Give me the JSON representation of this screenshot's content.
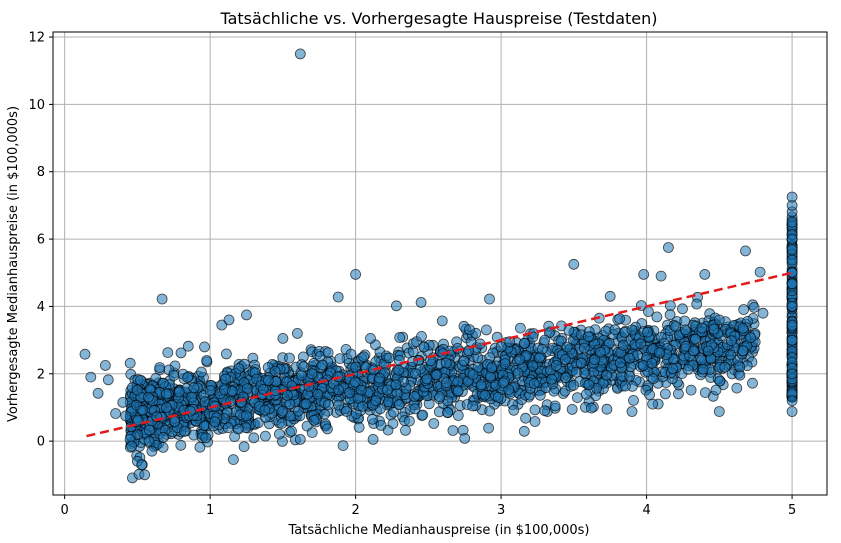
{
  "chart_data": {
    "type": "scatter",
    "title": "Tatsächliche vs. Vorhergesagte Hauspreise (Testdaten)",
    "xlabel": "Tatsächliche Medianhauspreise (in $100,000s)",
    "ylabel": "Vorhergesagte Medianhauspreise (in $100,000s)",
    "xlim": [
      -0.08,
      5.24
    ],
    "ylim": [
      -1.6,
      12.15
    ],
    "x_ticks": [
      0,
      1,
      2,
      3,
      4,
      5
    ],
    "y_ticks": [
      0,
      2,
      4,
      6,
      8,
      10,
      12
    ],
    "x_tick_labels": [
      "0",
      "1",
      "2",
      "3",
      "4",
      "5"
    ],
    "y_tick_labels": [
      "0",
      "2",
      "4",
      "6",
      "8",
      "10",
      "12"
    ],
    "grid": true,
    "colors": {
      "points": "#1f77b4",
      "point_edge": "#000000",
      "reference_line": "#e31a1c",
      "grid": "#b0b0b0"
    },
    "reference_line": {
      "x": [
        0.15,
        5.0
      ],
      "y": [
        0.15,
        5.0
      ],
      "style": "dashed"
    },
    "series": [
      {
        "values": [
          [
            1.62,
            11.5
          ],
          [
            0.14,
            2.58
          ],
          [
            0.18,
            1.9
          ],
          [
            0.23,
            1.42
          ],
          [
            0.28,
            2.25
          ],
          [
            0.3,
            1.82
          ],
          [
            0.35,
            0.82
          ],
          [
            0.4,
            1.15
          ],
          [
            0.42,
            0.75
          ],
          [
            0.45,
            0.05
          ],
          [
            0.46,
            -0.15
          ],
          [
            0.5,
            -0.6
          ],
          [
            0.53,
            -0.7
          ],
          [
            0.55,
            -1.0
          ],
          [
            0.58,
            0.0
          ],
          [
            0.6,
            -0.3
          ],
          [
            0.67,
            4.22
          ],
          [
            0.75,
            1.95
          ],
          [
            0.8,
            2.62
          ],
          [
            0.85,
            2.82
          ],
          [
            0.93,
            -0.18
          ],
          [
            0.97,
            0.1
          ],
          [
            1.08,
            3.45
          ],
          [
            1.13,
            3.6
          ],
          [
            1.16,
            -0.55
          ],
          [
            1.25,
            3.75
          ],
          [
            1.3,
            0.1
          ],
          [
            1.38,
            0.15
          ],
          [
            1.5,
            3.05
          ],
          [
            1.6,
            3.2
          ],
          [
            1.62,
            0.05
          ],
          [
            1.88,
            4.28
          ],
          [
            2.0,
            4.95
          ],
          [
            2.12,
            0.05
          ],
          [
            2.28,
            4.02
          ],
          [
            2.45,
            4.12
          ],
          [
            2.75,
            0.08
          ],
          [
            2.92,
            4.22
          ],
          [
            2.98,
            1.3
          ],
          [
            3.5,
            5.25
          ],
          [
            3.62,
            0.98
          ],
          [
            3.75,
            4.3
          ],
          [
            3.9,
            0.88
          ],
          [
            3.98,
            4.95
          ],
          [
            4.1,
            4.9
          ],
          [
            4.15,
            5.75
          ],
          [
            4.4,
            4.95
          ],
          [
            4.5,
            0.88
          ],
          [
            4.68,
            5.65
          ],
          [
            4.78,
            5.02
          ],
          [
            2.0,
            2.2
          ],
          [
            2.3,
            2.4
          ],
          [
            2.6,
            2.6
          ],
          [
            1.7,
            2.0
          ],
          [
            1.4,
            1.8
          ],
          [
            1.0,
            1.5
          ],
          [
            0.7,
            1.0
          ],
          [
            3.0,
            2.8
          ],
          [
            3.3,
            3.0
          ],
          [
            3.6,
            3.1
          ],
          [
            3.9,
            3.3
          ],
          [
            4.2,
            3.4
          ],
          [
            4.5,
            3.6
          ],
          [
            4.8,
            3.8
          ],
          [
            5.0,
            0.88
          ],
          [
            5.0,
            1.2
          ],
          [
            5.0,
            2.0
          ],
          [
            5.0,
            3.0
          ],
          [
            5.0,
            4.0
          ],
          [
            5.0,
            5.0
          ],
          [
            5.0,
            6.0
          ],
          [
            5.0,
            6.5
          ],
          [
            5.0,
            7.0
          ],
          [
            5.0,
            7.25
          ]
        ]
      }
    ]
  }
}
